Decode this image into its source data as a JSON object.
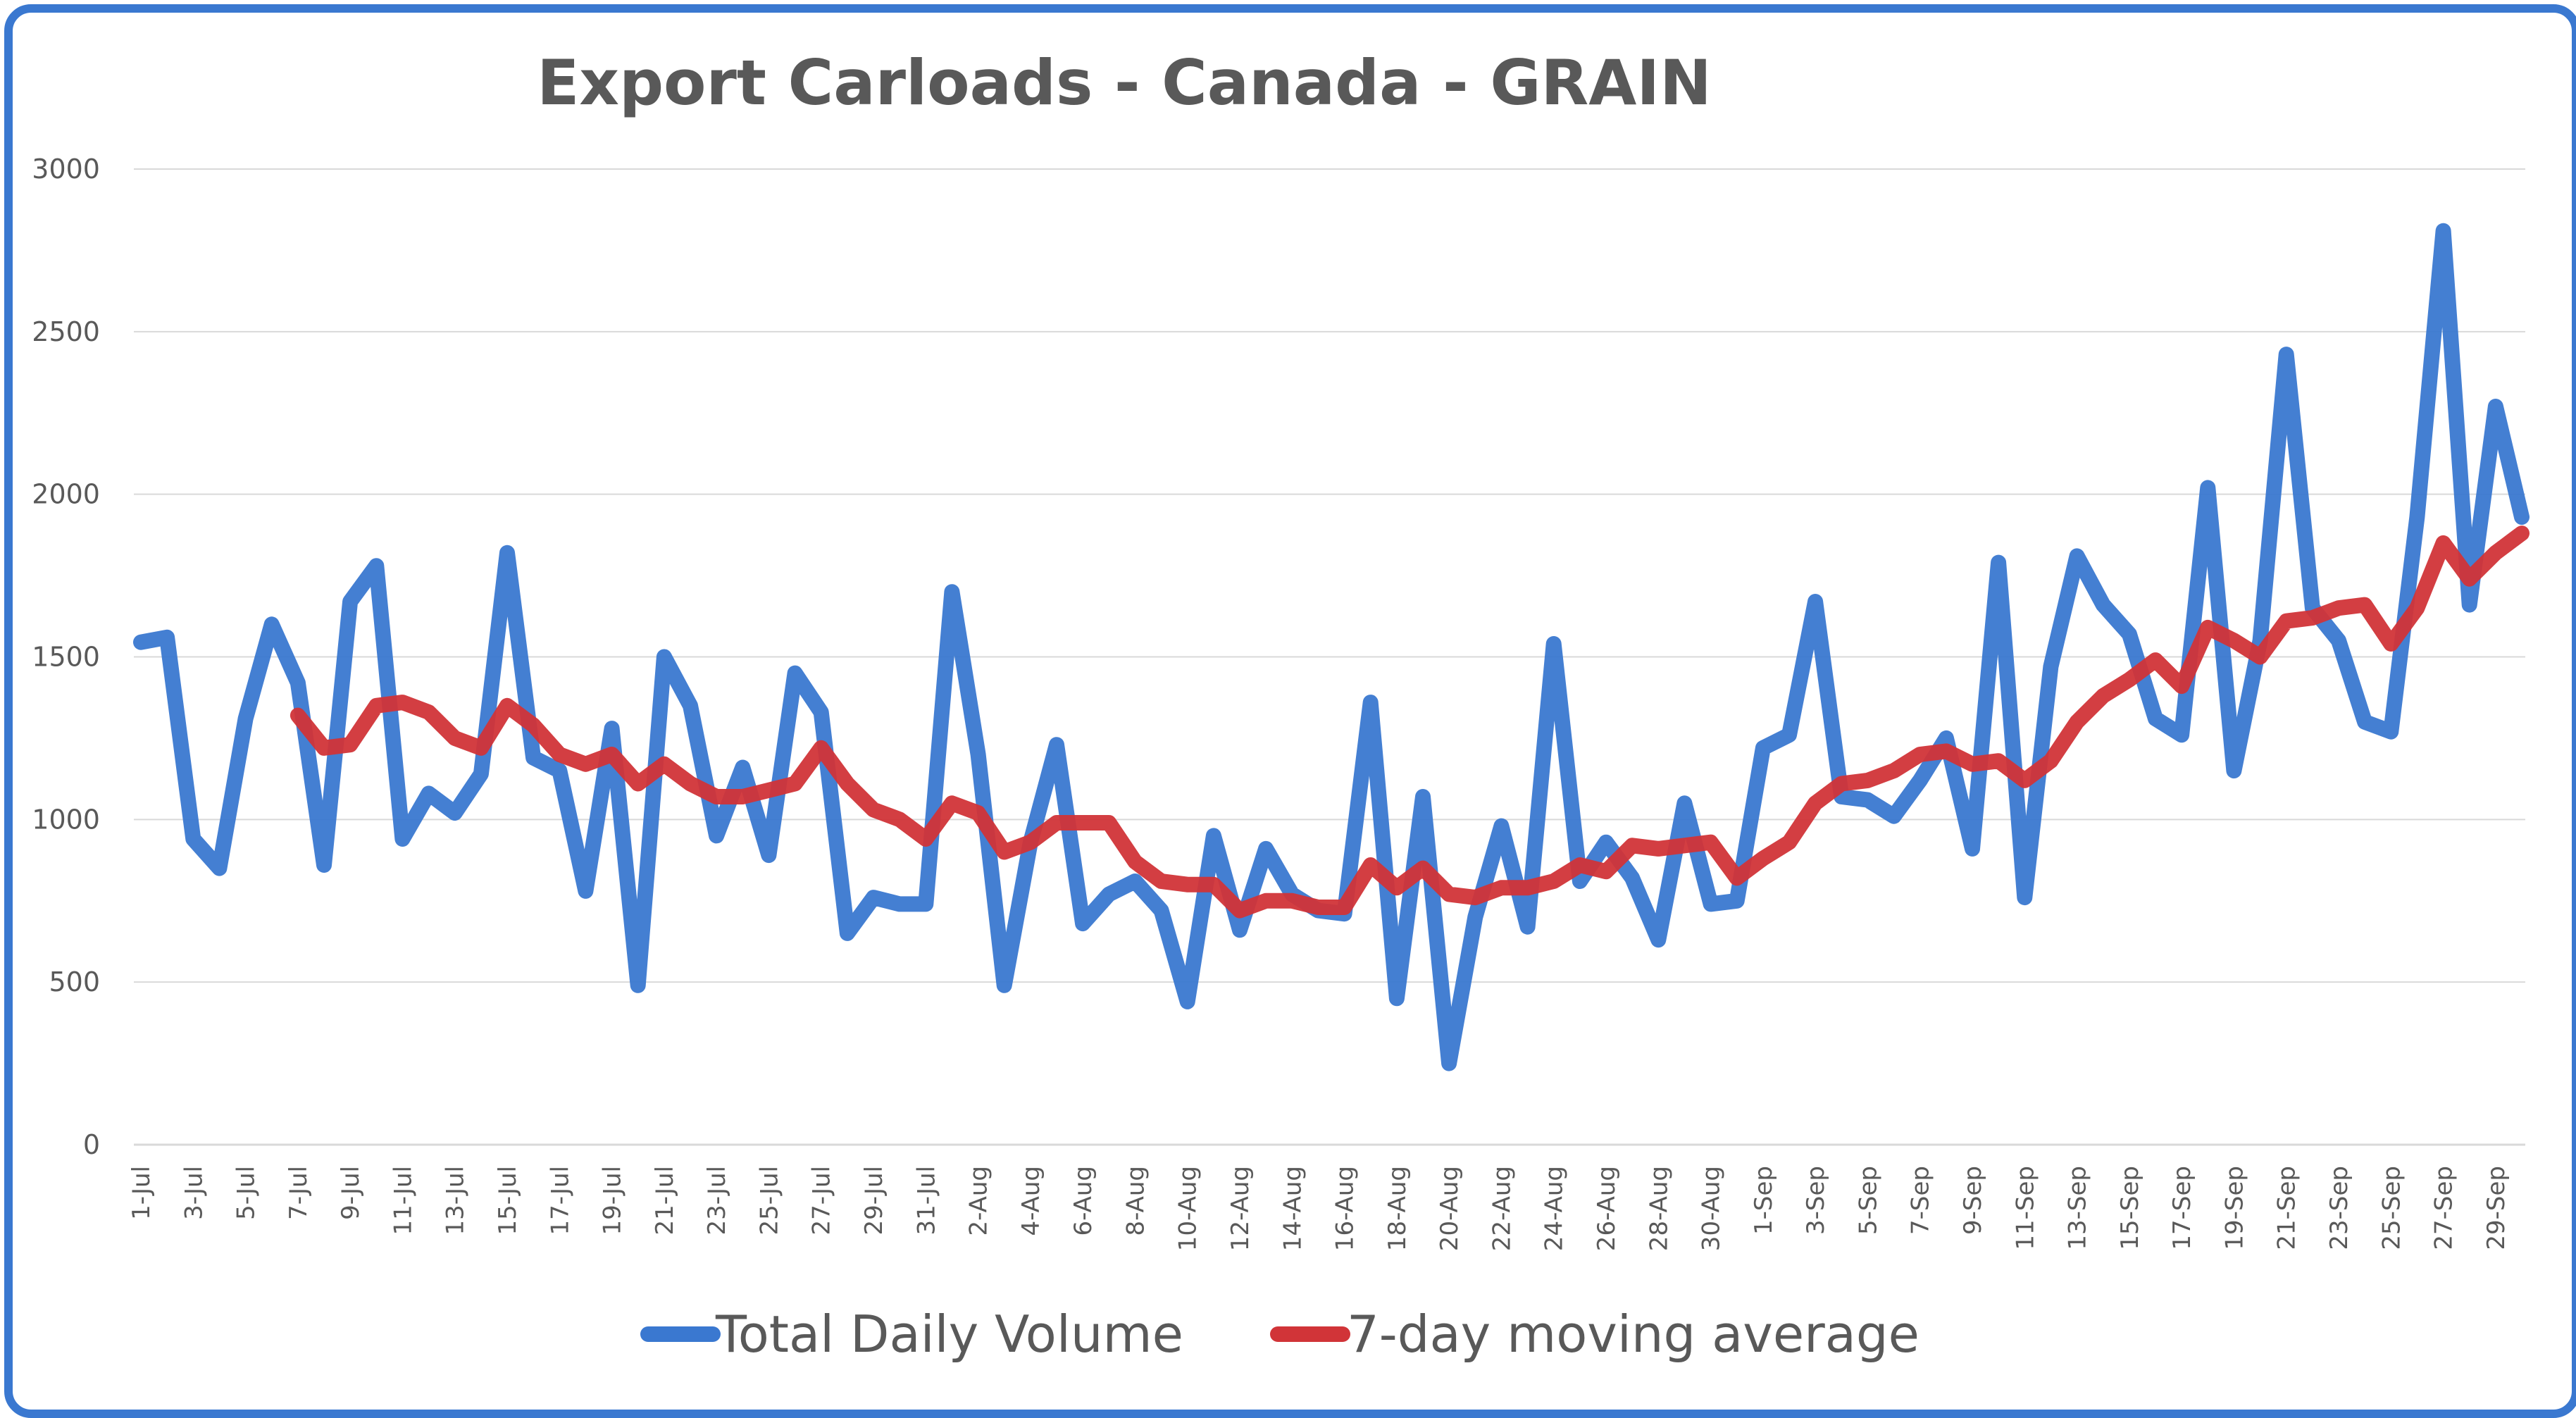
{
  "chart_data": {
    "type": "line",
    "title": "Export Carloads - Canada - GRAIN",
    "xlabel": "",
    "ylabel": "",
    "ylim": [
      0,
      3000
    ],
    "yticks": [
      0,
      500,
      1000,
      1500,
      2000,
      2500,
      3000
    ],
    "grid": true,
    "legend_position": "bottom",
    "categories": [
      "1-Jul",
      "2-Jul",
      "3-Jul",
      "4-Jul",
      "5-Jul",
      "6-Jul",
      "7-Jul",
      "8-Jul",
      "9-Jul",
      "10-Jul",
      "11-Jul",
      "12-Jul",
      "13-Jul",
      "14-Jul",
      "15-Jul",
      "16-Jul",
      "17-Jul",
      "18-Jul",
      "19-Jul",
      "20-Jul",
      "21-Jul",
      "22-Jul",
      "23-Jul",
      "24-Jul",
      "25-Jul",
      "26-Jul",
      "27-Jul",
      "28-Jul",
      "29-Jul",
      "30-Jul",
      "31-Jul",
      "1-Aug",
      "2-Aug",
      "3-Aug",
      "4-Aug",
      "5-Aug",
      "6-Aug",
      "7-Aug",
      "8-Aug",
      "9-Aug",
      "10-Aug",
      "11-Aug",
      "12-Aug",
      "13-Aug",
      "14-Aug",
      "15-Aug",
      "16-Aug",
      "17-Aug",
      "18-Aug",
      "19-Aug",
      "20-Aug",
      "21-Aug",
      "22-Aug",
      "23-Aug",
      "24-Aug",
      "25-Aug",
      "26-Aug",
      "27-Aug",
      "28-Aug",
      "29-Aug",
      "30-Aug",
      "31-Aug",
      "1-Sep",
      "2-Sep",
      "3-Sep",
      "4-Sep",
      "5-Sep",
      "6-Sep",
      "7-Sep",
      "8-Sep",
      "9-Sep",
      "10-Sep",
      "11-Sep",
      "12-Sep",
      "13-Sep",
      "14-Sep",
      "15-Sep",
      "16-Sep",
      "17-Sep",
      "18-Sep",
      "19-Sep",
      "20-Sep",
      "21-Sep",
      "22-Sep",
      "23-Sep",
      "24-Sep",
      "25-Sep",
      "26-Sep",
      "27-Sep",
      "28-Sep",
      "29-Sep",
      "30-Sep"
    ],
    "tick_labels": [
      "1-Jul",
      "3-Jul",
      "5-Jul",
      "7-Jul",
      "9-Jul",
      "11-Jul",
      "13-Jul",
      "15-Jul",
      "17-Jul",
      "19-Jul",
      "21-Jul",
      "23-Jul",
      "25-Jul",
      "27-Jul",
      "29-Jul",
      "31-Jul",
      "2-Aug",
      "4-Aug",
      "6-Aug",
      "8-Aug",
      "10-Aug",
      "12-Aug",
      "14-Aug",
      "16-Aug",
      "18-Aug",
      "20-Aug",
      "22-Aug",
      "24-Aug",
      "26-Aug",
      "28-Aug",
      "30-Aug",
      "1-Sep",
      "3-Sep",
      "5-Sep",
      "7-Sep",
      "9-Sep",
      "11-Sep",
      "13-Sep",
      "15-Sep",
      "17-Sep",
      "19-Sep",
      "21-Sep",
      "23-Sep",
      "25-Sep",
      "27-Sep",
      "29-Sep"
    ],
    "series": [
      {
        "name": "Total Daily Volume",
        "color": "#3a78d0",
        "values": [
          1545,
          1560,
          940,
          850,
          1310,
          1600,
          1420,
          860,
          1670,
          1780,
          940,
          1080,
          1020,
          1140,
          1820,
          1190,
          1150,
          780,
          1280,
          490,
          1500,
          1350,
          950,
          1160,
          890,
          1450,
          1330,
          650,
          760,
          740,
          740,
          1700,
          1200,
          490,
          930,
          1230,
          680,
          770,
          810,
          720,
          440,
          950,
          660,
          910,
          770,
          720,
          710,
          1360,
          450,
          1070,
          250,
          700,
          980,
          670,
          1540,
          810,
          930,
          820,
          630,
          1050,
          740,
          750,
          1220,
          1260,
          1670,
          1070,
          1060,
          1010,
          1120,
          1250,
          910,
          1790,
          760,
          1470,
          1810,
          1660,
          1570,
          1310,
          1260,
          2020,
          1150,
          1550,
          2430,
          1650,
          1550,
          1300,
          1270,
          1930,
          2810,
          1660,
          2270,
          1930
        ]
      },
      {
        "name": "7-day moving average",
        "color": "#d13438",
        "values": [
          null,
          null,
          null,
          null,
          null,
          null,
          1320,
          1220,
          1230,
          1350,
          1360,
          1330,
          1250,
          1220,
          1350,
          1290,
          1200,
          1170,
          1200,
          1110,
          1170,
          1110,
          1070,
          1070,
          1090,
          1110,
          1220,
          1110,
          1030,
          1000,
          940,
          1050,
          1020,
          900,
          930,
          990,
          990,
          990,
          870,
          810,
          800,
          800,
          720,
          750,
          750,
          730,
          730,
          860,
          790,
          850,
          770,
          760,
          790,
          790,
          810,
          860,
          840,
          920,
          910,
          920,
          930,
          820,
          880,
          930,
          1050,
          1110,
          1120,
          1150,
          1200,
          1210,
          1170,
          1180,
          1120,
          1180,
          1300,
          1380,
          1430,
          1490,
          1410,
          1590,
          1550,
          1500,
          1610,
          1620,
          1650,
          1660,
          1540,
          1650,
          1850,
          1740,
          1820,
          1880
        ]
      }
    ]
  }
}
